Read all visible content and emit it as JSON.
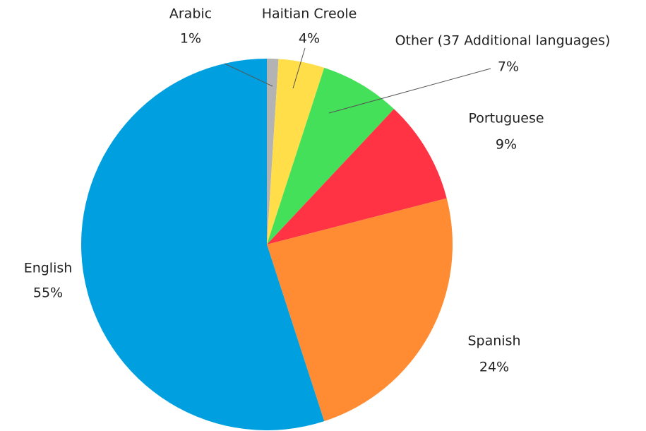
{
  "chart_data": {
    "type": "pie",
    "categories": [
      "Arabic",
      "Haitian Creole",
      "Other (37 Additional languages)",
      "Portuguese",
      "Spanish",
      "English"
    ],
    "values": [
      1,
      4,
      7,
      9,
      24,
      55
    ],
    "value_labels": [
      "1%",
      "4%",
      "7%",
      "9%",
      "24%",
      "55%"
    ],
    "colors": [
      "#b3b3b3",
      "#ffde4a",
      "#45e05a",
      "#ff3344",
      "#ff8c33",
      "#00a0e0"
    ]
  }
}
